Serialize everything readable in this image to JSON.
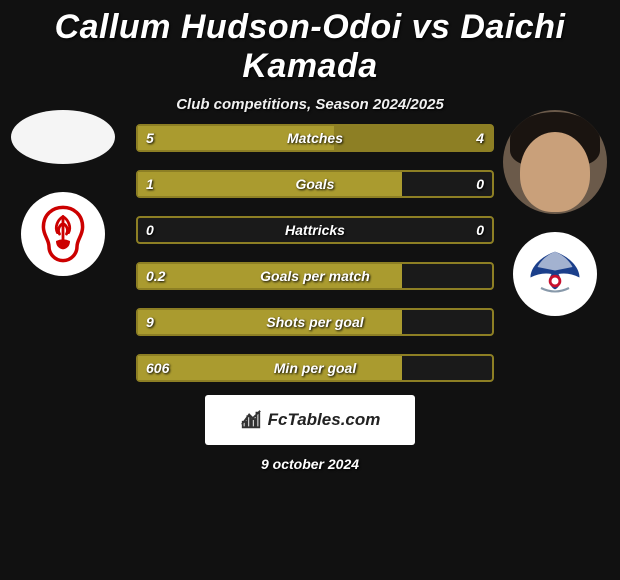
{
  "title": "Callum Hudson-Odoi vs Daichi Kamada",
  "subtitle": "Club competitions, Season 2024/2025",
  "date": "9 october 2024",
  "footer_text": "FcTables.com",
  "colors": {
    "bar_left": "#aa9b2f",
    "bar_right": "#8d7f24",
    "border": "#8d7f24",
    "background": "#111111"
  },
  "player1": {
    "club_primary": "#cc0000",
    "club_name": "nottingham-forest"
  },
  "player2": {
    "club_primary_1": "#1b3f8b",
    "club_primary_2": "#c8102e",
    "club_name": "crystal-palace"
  },
  "bar_total_width": 354,
  "stats": [
    {
      "label": "Matches",
      "left_val": "5",
      "right_val": "4",
      "left_w": 196,
      "right_w": 158
    },
    {
      "label": "Goals",
      "left_val": "1",
      "right_val": "0",
      "left_w": 264,
      "right_w": 0
    },
    {
      "label": "Hattricks",
      "left_val": "0",
      "right_val": "0",
      "left_w": 0,
      "right_w": 0
    },
    {
      "label": "Goals per match",
      "left_val": "0.2",
      "right_val": "",
      "left_w": 264,
      "right_w": 0
    },
    {
      "label": "Shots per goal",
      "left_val": "9",
      "right_val": "",
      "left_w": 264,
      "right_w": 0
    },
    {
      "label": "Min per goal",
      "left_val": "606",
      "right_val": "",
      "left_w": 264,
      "right_w": 0
    }
  ]
}
